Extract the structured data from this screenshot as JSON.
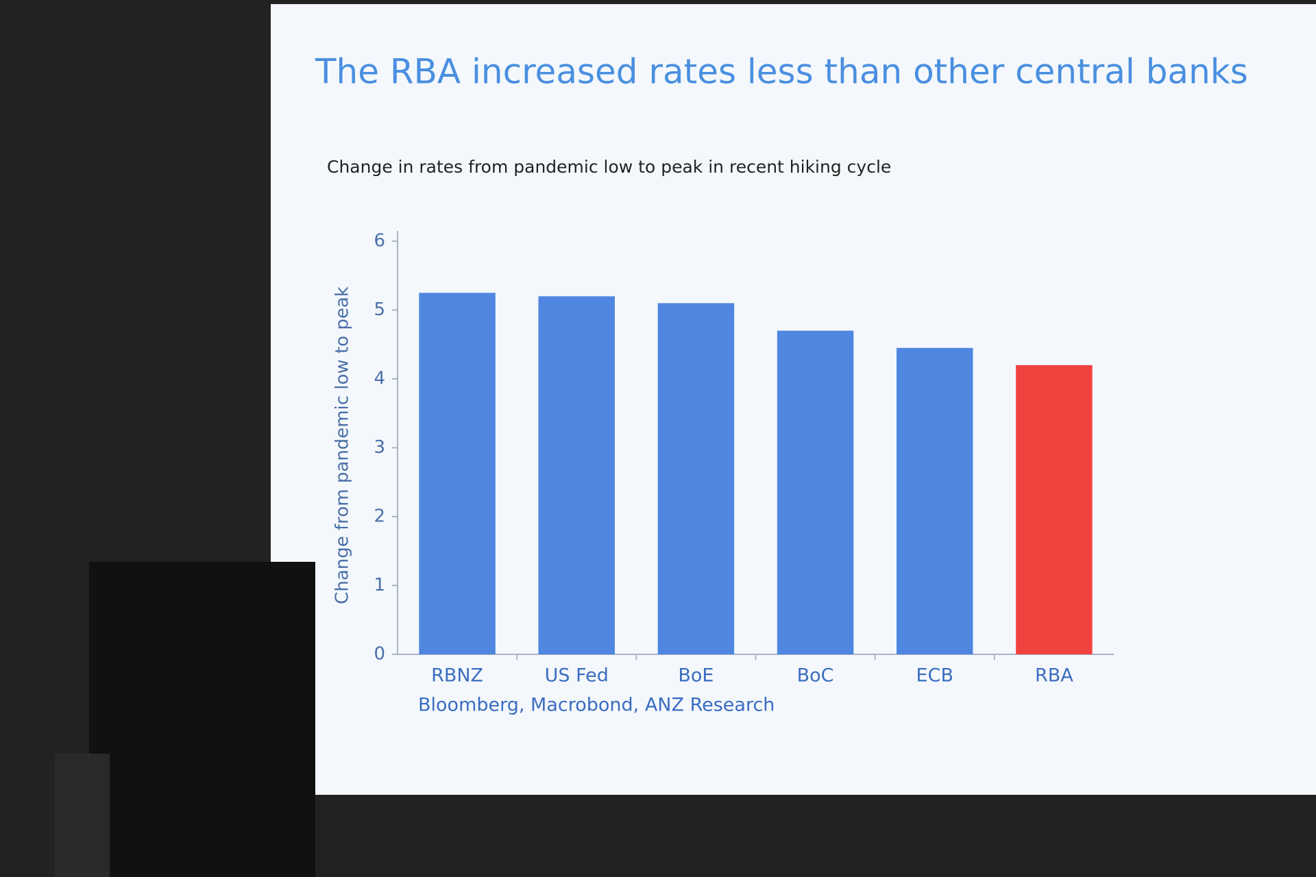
{
  "chart_data": {
    "type": "bar",
    "title": "The RBA increased rates less than other central banks",
    "subtitle": "Change in rates from pandemic low to peak in recent hiking cycle",
    "y_label": "Change from pandemic low to peak",
    "source": "Bloomberg, Macrobond, ANZ Research",
    "categories": [
      "RBNZ",
      "US Fed",
      "BoE",
      "BoC",
      "ECB",
      "RBA"
    ],
    "values": [
      5.25,
      5.2,
      5.1,
      4.7,
      4.45,
      4.2
    ],
    "colors": [
      "#4f86e0",
      "#4f86e0",
      "#4f86e0",
      "#4f86e0",
      "#4f86e0",
      "#f0423f"
    ],
    "ylim": [
      0,
      6
    ],
    "yticks": [
      0,
      1,
      2,
      3,
      4,
      5,
      6
    ]
  }
}
